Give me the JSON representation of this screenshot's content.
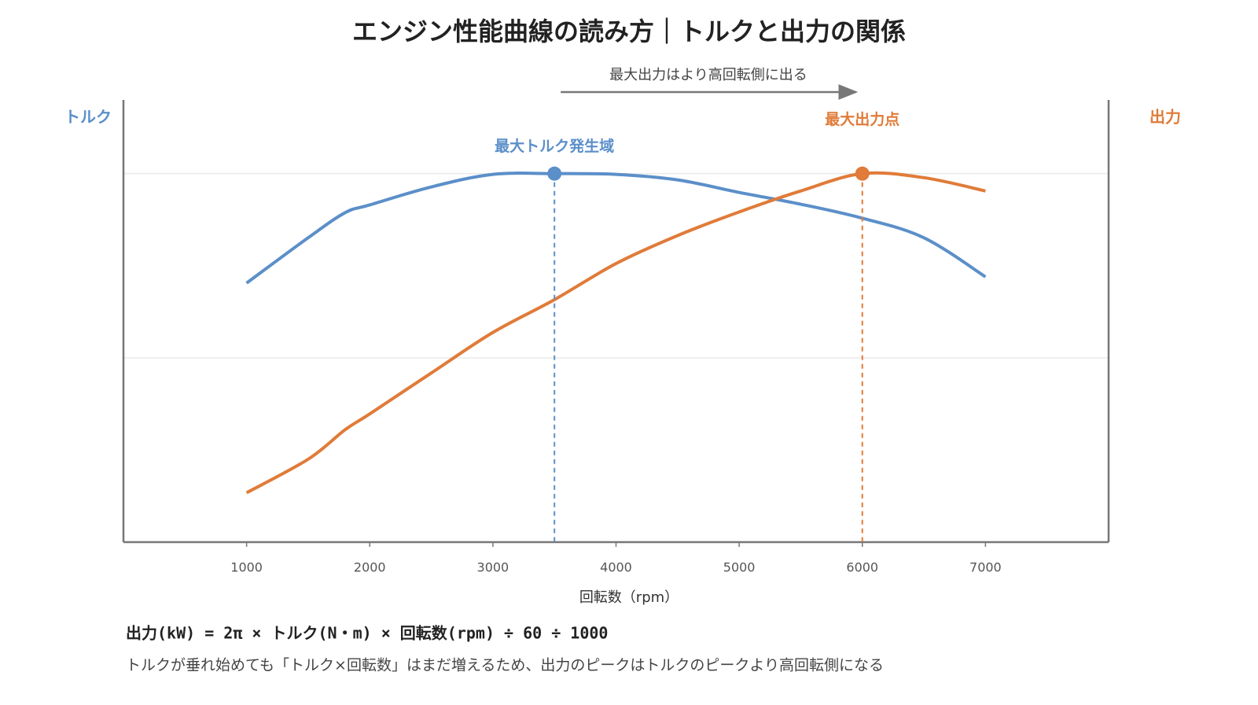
{
  "chart_data": {
    "type": "line",
    "title": "エンジン性能曲線の読み方｜トルクと出力の関係",
    "x_label": "回転数（rpm）",
    "x": [
      1000,
      1500,
      1800,
      2000,
      2500,
      3000,
      3500,
      4000,
      4500,
      5000,
      5500,
      6000,
      6500,
      7000
    ],
    "xlim": [
      0,
      8000
    ],
    "xticks": [
      1000,
      2000,
      3000,
      4000,
      5000,
      6000,
      7000
    ],
    "ylim": [
      0,
      120
    ],
    "y2lim": [
      0,
      120
    ],
    "ygrid": [
      50,
      100
    ],
    "series": [
      {
        "name": "トルク",
        "color": "#5b8fc9",
        "values": [
          70.3,
          82.6,
          89.4,
          91.5,
          96.4,
          99.8,
          100,
          99.8,
          98.3,
          94.9,
          91.7,
          87.9,
          82.6,
          72
        ]
      },
      {
        "name": "出力",
        "color": "#e07b39",
        "axis": "y2",
        "values": [
          13.4,
          22.5,
          30.5,
          34.8,
          45.9,
          56.9,
          65.8,
          75.6,
          83.2,
          89.6,
          95.3,
          100,
          98.9,
          95.3
        ]
      }
    ],
    "annotations": [
      {
        "text": "最大トルク発生域",
        "x": 3500,
        "series": 0,
        "point": 6
      },
      {
        "text": "最大出力点",
        "x": 6000,
        "series": 1,
        "point": 11
      }
    ],
    "arrow": {
      "text": "最大出力はより高回転側に出る",
      "from": 3500,
      "to": 6000
    },
    "formula": "出力(kW) = 2π × トルク(N・m) × 回転数(rpm) ÷ 60 ÷ 1000",
    "note": "トルクが垂れ始めても「トルク×回転数」はまだ増えるため、出力のピークはトルクのピークより高回転側になる"
  }
}
